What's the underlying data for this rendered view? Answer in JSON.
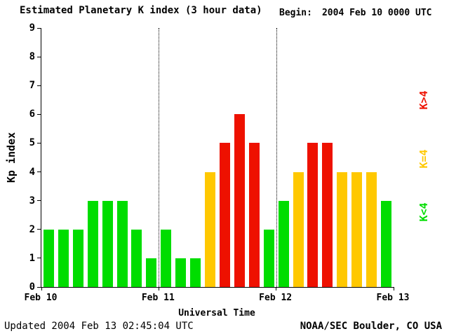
{
  "header": {
    "title": "Estimated Planetary K index (3 hour data)",
    "begin_label": "Begin:",
    "begin_value": "2004 Feb 10 0000 UTC"
  },
  "footer": {
    "updated": "Updated 2004 Feb 13 02:45:04 UTC",
    "source": "NOAA/SEC Boulder, CO USA"
  },
  "legend": [
    {
      "label": "K>4",
      "color": "#ee1100"
    },
    {
      "label": "K=4",
      "color": "#ffc800"
    },
    {
      "label": "K<4",
      "color": "#00dd00"
    }
  ],
  "colors": {
    "green": "#00dd00",
    "yellow": "#ffc800",
    "red": "#ee1100"
  },
  "chart_data": {
    "type": "bar",
    "title": "Estimated Planetary K index (3 hour data)",
    "xlabel": "Universal Time",
    "ylabel": "Kp index",
    "ylim": [
      0,
      9
    ],
    "y_ticks": [
      0,
      1,
      2,
      3,
      4,
      5,
      6,
      7,
      8,
      9
    ],
    "x_ticks": [
      "Feb 10",
      "Feb 11",
      "Feb 12",
      "Feb 13"
    ],
    "bars_per_day": 8,
    "values": [
      2,
      2,
      2,
      3,
      3,
      3,
      2,
      1,
      2,
      1,
      1,
      4,
      5,
      6,
      5,
      2,
      3,
      4,
      5,
      5,
      4,
      4,
      4,
      3
    ],
    "color_rule": {
      "lt4": "green",
      "eq4": "yellow",
      "gt4": "red"
    },
    "grid": "dotted vertical lines at day boundaries",
    "legend_position": "right"
  }
}
